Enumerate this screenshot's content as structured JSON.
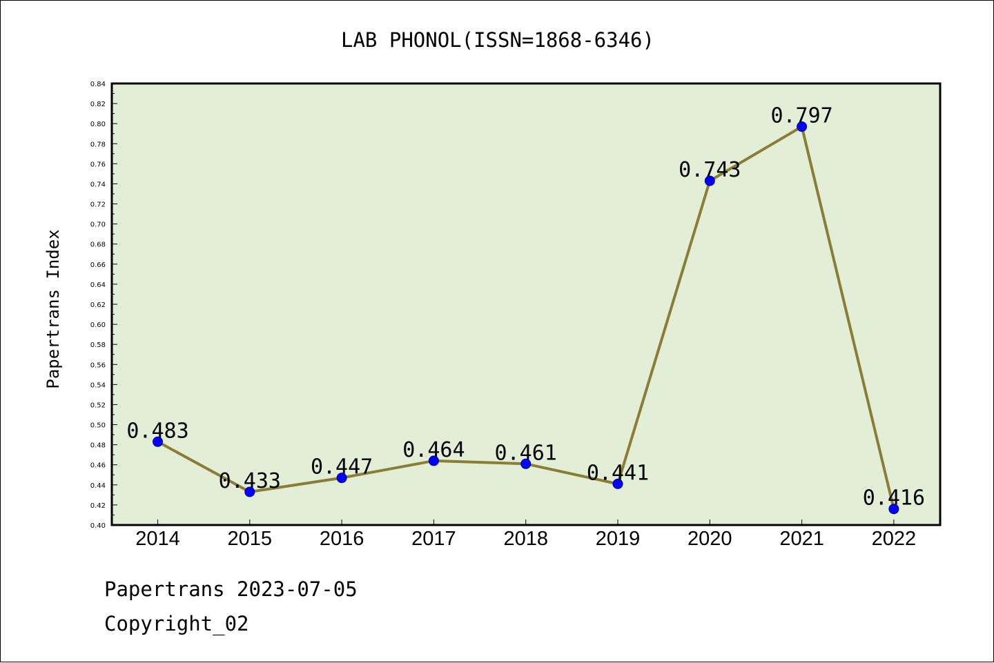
{
  "chart_data": {
    "type": "line",
    "title": "LAB PHONOL(ISSN=1868-6346)",
    "ylabel": "Papertrans Index",
    "xlabel": "",
    "categories": [
      "2014",
      "2015",
      "2016",
      "2017",
      "2018",
      "2019",
      "2020",
      "2021",
      "2022"
    ],
    "series": [
      {
        "values": [
          0.483,
          0.433,
          0.447,
          0.464,
          0.461,
          0.441,
          0.743,
          0.797,
          0.416
        ],
        "labels": [
          "0.483",
          "0.433",
          "0.447",
          "0.464",
          "0.461",
          "0.441",
          "0.743",
          "0.797",
          "0.416"
        ]
      }
    ],
    "ylim": [
      0.4,
      0.84
    ],
    "yticks": [
      "0.40",
      "0.42",
      "0.44",
      "0.46",
      "0.48",
      "0.50",
      "0.52",
      "0.54",
      "0.56",
      "0.58",
      "0.60",
      "0.62",
      "0.64",
      "0.66",
      "0.68",
      "0.70",
      "0.72",
      "0.74",
      "0.76",
      "0.78",
      "0.80",
      "0.82",
      "0.84"
    ],
    "grid": false,
    "colors": {
      "plot_bg": "#e2efd6",
      "line": "#8b7d35",
      "marker": "#0000ff",
      "frame": "#000000"
    }
  },
  "footer": {
    "date_line": "Papertrans 2023-07-05",
    "copyright": "Copyright_02"
  }
}
